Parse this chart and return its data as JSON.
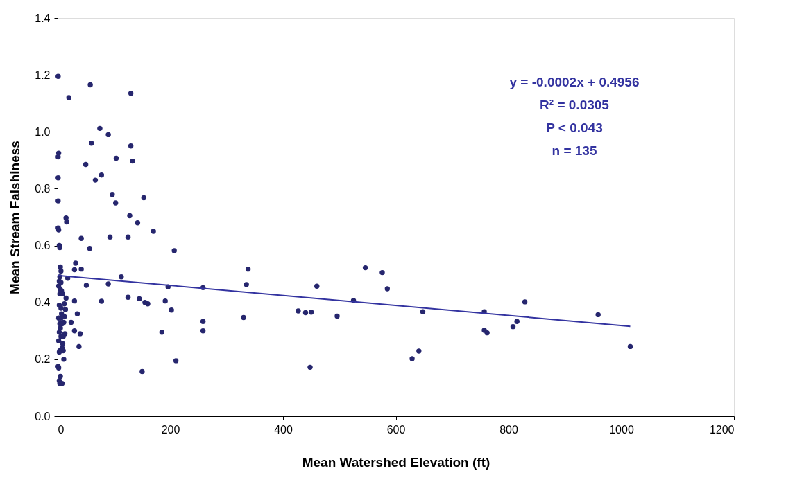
{
  "chart_data": {
    "type": "scatter",
    "xlabel": "Mean Watershed Elevation (ft)",
    "ylabel": "Mean Stream Falshiness",
    "xlim": [
      0,
      1200
    ],
    "xticks": [
      0,
      200,
      400,
      600,
      800,
      1000,
      1200
    ],
    "ylim": [
      0,
      1.4
    ],
    "yticks": [
      {
        "value": 0,
        "label": "0.0"
      },
      {
        "value": 0.2,
        "label": "0.2"
      },
      {
        "value": 0.4,
        "label": "0.4"
      },
      {
        "value": 0.6,
        "label": "0.6"
      },
      {
        "value": 0.8,
        "label": "0.8"
      },
      {
        "value": 1.0,
        "label": "1.0"
      },
      {
        "value": 1.2,
        "label": "1.2"
      },
      {
        "value": 1.4,
        "label": "1.4"
      }
    ],
    "grid": false,
    "legend": false,
    "annotations": [
      "y = -0.0002x + 0.4956",
      "R² = 0.0305",
      "P < 0.043",
      "n = 135"
    ],
    "series": [
      {
        "type": "scatter",
        "color": "#26266e",
        "marker": "circle",
        "x": [
          1016,
          959,
          829,
          815,
          808,
          762,
          757,
          757,
          648,
          641,
          629,
          585,
          576,
          546,
          525,
          496,
          460,
          450,
          448,
          440,
          427,
          338,
          335,
          330,
          258,
          258,
          258,
          210,
          207,
          202,
          196,
          191,
          185,
          160,
          155,
          153,
          150,
          145,
          170,
          142,
          133,
          130,
          130,
          128,
          125,
          125,
          113,
          104,
          103,
          97,
          93,
          90,
          90,
          78,
          78,
          75,
          67,
          60,
          58,
          57,
          50,
          51,
          42,
          42,
          40,
          38,
          35,
          32,
          30,
          30,
          30,
          24,
          20,
          18,
          16,
          15,
          15,
          14,
          13,
          11,
          11,
          10,
          9,
          8,
          8,
          6,
          1,
          2,
          1,
          1,
          1,
          1,
          2,
          3,
          4,
          5,
          6,
          4,
          3,
          2,
          5,
          4,
          3,
          6,
          2,
          4,
          5,
          3,
          6,
          2,
          4,
          3,
          1,
          2,
          5,
          3,
          4,
          6,
          7,
          9,
          12,
          10,
          8,
          7,
          12
        ],
        "values": [
          0.245,
          0.357,
          0.402,
          0.333,
          0.315,
          0.293,
          0.302,
          0.367,
          0.367,
          0.229,
          0.202,
          0.448,
          0.505,
          0.522,
          0.407,
          0.352,
          0.457,
          0.366,
          0.172,
          0.364,
          0.37,
          0.517,
          0.463,
          0.347,
          0.452,
          0.333,
          0.3,
          0.195,
          0.582,
          0.373,
          0.455,
          0.405,
          0.295,
          0.395,
          0.4,
          0.768,
          0.157,
          0.413,
          0.65,
          0.68,
          0.897,
          0.95,
          1.135,
          0.705,
          0.63,
          0.418,
          0.49,
          0.907,
          0.75,
          0.78,
          0.63,
          0.99,
          0.465,
          0.848,
          0.404,
          1.012,
          0.83,
          0.96,
          1.165,
          0.59,
          0.885,
          0.46,
          0.625,
          0.517,
          0.29,
          0.245,
          0.36,
          0.538,
          0.515,
          0.405,
          0.3,
          0.33,
          1.12,
          0.485,
          0.683,
          0.697,
          0.415,
          0.375,
          0.29,
          0.33,
          0.2,
          0.23,
          0.255,
          0.325,
          0.115,
          0.345,
          1.195,
          0.925,
          0.912,
          0.838,
          0.757,
          0.662,
          0.655,
          0.6,
          0.593,
          0.525,
          0.51,
          0.49,
          0.475,
          0.458,
          0.445,
          0.43,
          0.39,
          0.38,
          0.345,
          0.325,
          0.31,
          0.295,
          0.28,
          0.265,
          0.23,
          0.225,
          0.175,
          0.17,
          0.14,
          0.125,
          0.115,
          0.47,
          0.44,
          0.43,
          0.35,
          0.28,
          0.24,
          0.36,
          0.395
        ]
      },
      {
        "type": "line",
        "color": "#3333a0",
        "marker": "none",
        "line_style": "solid",
        "x": [
          0,
          1016
        ],
        "values": [
          0.495,
          0.316
        ]
      }
    ]
  }
}
